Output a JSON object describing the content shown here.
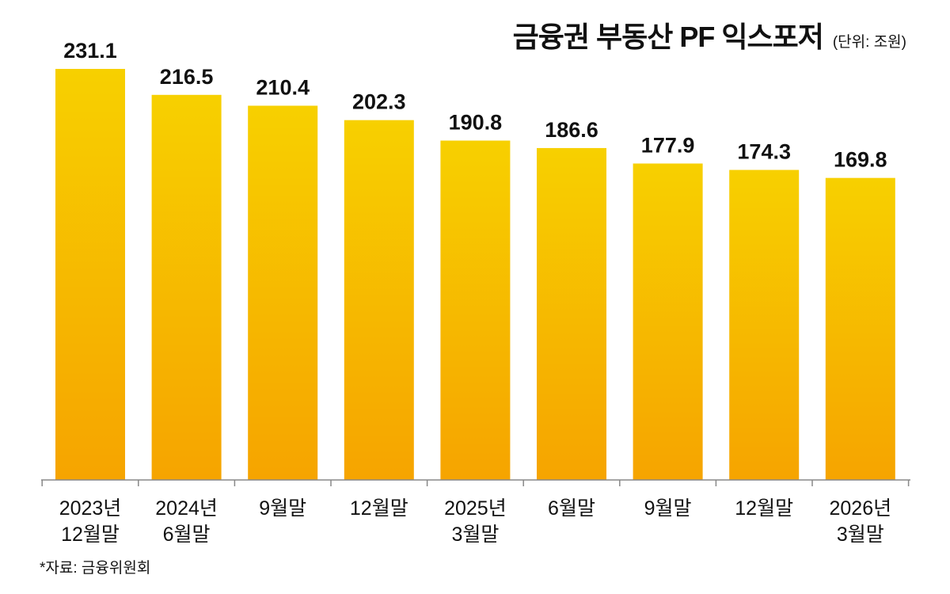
{
  "header": {
    "title": "금융권 부동산 PF 익스포저",
    "unit": "(단위: 조원)"
  },
  "source": "*자료: 금융위원회",
  "colors": {
    "bar_top": "#f7d000",
    "bar_bottom": "#f6a400",
    "axis": "#888888"
  },
  "chart_data": {
    "type": "bar",
    "title": "금융권 부동산 PF 익스포저",
    "unit": "(단위: 조원)",
    "categories": [
      [
        "2023년",
        "12월말"
      ],
      [
        "2024년",
        "6월말"
      ],
      [
        "9월말"
      ],
      [
        "12월말"
      ],
      [
        "2025년",
        "3월말"
      ],
      [
        "6월말"
      ],
      [
        "9월말"
      ],
      [
        "12월말"
      ],
      [
        "2026년",
        "3월말"
      ]
    ],
    "values": [
      231.1,
      216.5,
      210.4,
      202.3,
      190.8,
      186.6,
      177.9,
      174.3,
      169.8
    ],
    "value_labels": [
      "231.1",
      "216.5",
      "210.4",
      "202.3",
      "190.8",
      "186.6",
      "177.9",
      "174.3",
      "169.8"
    ],
    "ylim": [
      0,
      231.1
    ],
    "grid": false,
    "legend": "none"
  }
}
